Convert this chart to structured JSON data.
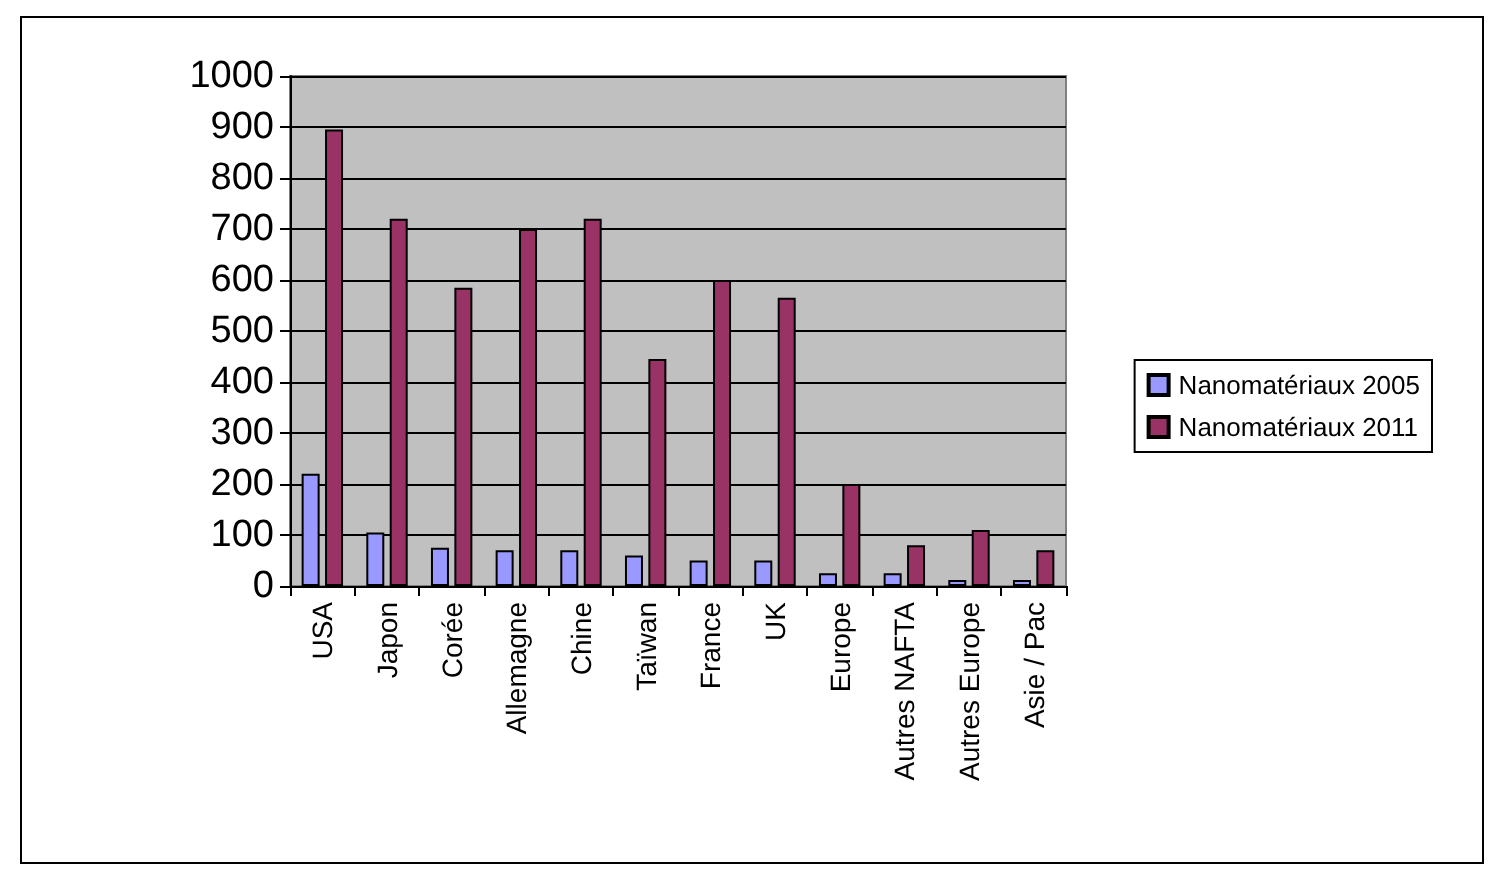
{
  "chart_data": {
    "type": "bar",
    "categories": [
      "USA",
      "Japon",
      "Corée",
      "Allemagne",
      "Chine",
      "Taïwan",
      "France",
      "UK",
      "Europe",
      "Autres NAFTA",
      "Autres Europe",
      "Asie / Pac"
    ],
    "series": [
      {
        "name": "Nanomatériaux 2005",
        "color": "#9999ff",
        "values": [
          220,
          105,
          75,
          70,
          70,
          60,
          50,
          50,
          25,
          25,
          12,
          12
        ]
      },
      {
        "name": "Nanomatériaux 2011",
        "color": "#993366",
        "values": [
          895,
          720,
          585,
          700,
          720,
          445,
          600,
          565,
          200,
          80,
          110,
          70
        ]
      }
    ],
    "ylim": [
      0,
      1000
    ],
    "yticks": [
      0,
      100,
      200,
      300,
      400,
      500,
      600,
      700,
      800,
      900,
      1000
    ],
    "grid": "y",
    "legend": "right"
  }
}
